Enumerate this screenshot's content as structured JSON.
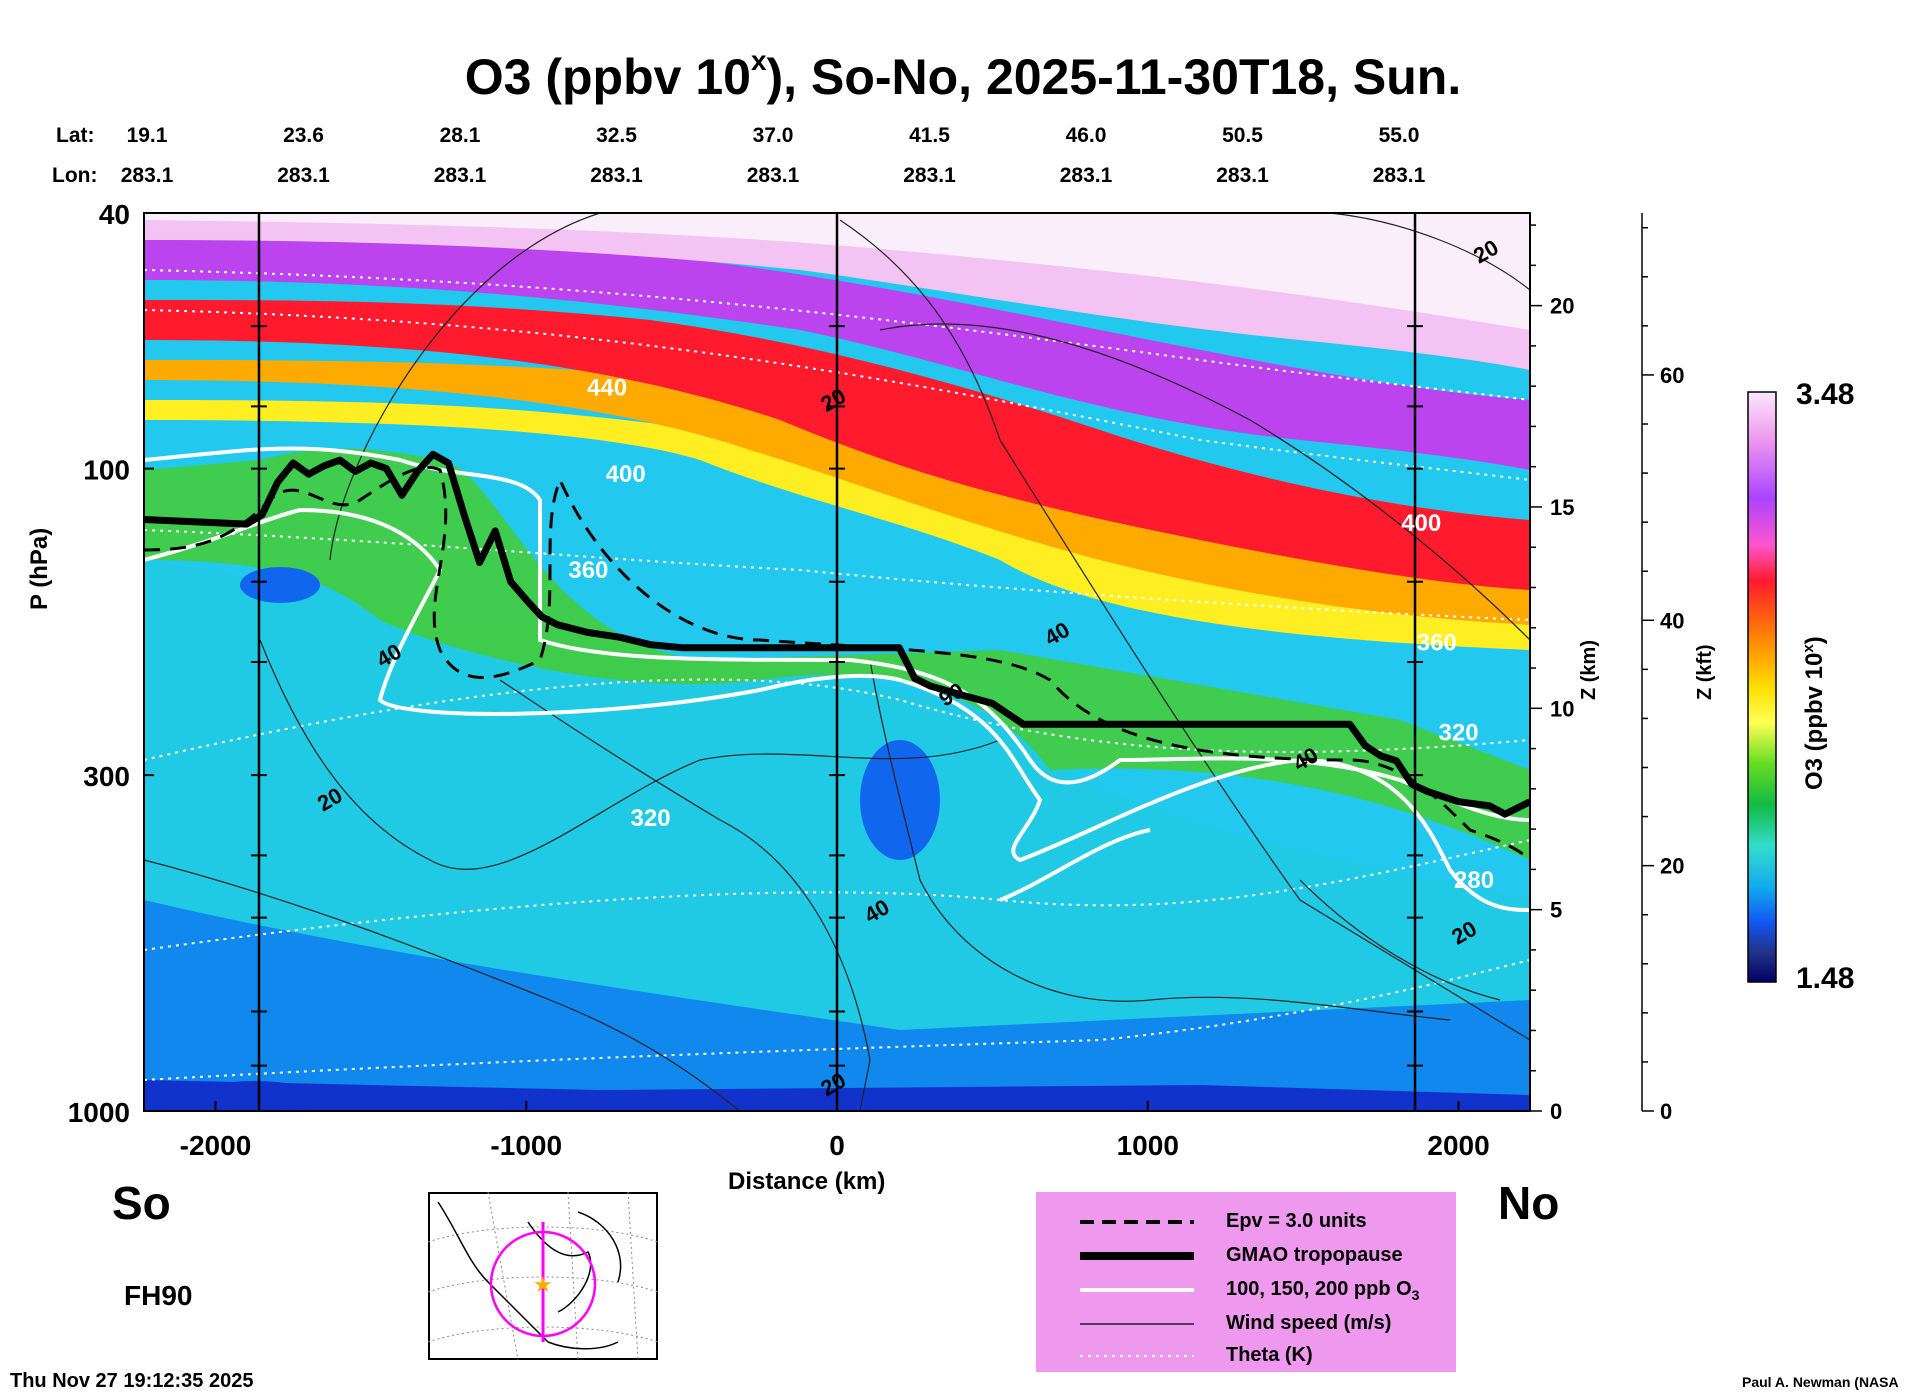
{
  "chart_data": {
    "type": "heatmap",
    "title_main": "O3 (ppbv 10",
    "title_sup": "x",
    "title_rest": "), So-No, 2025-11-30T18, Sun.",
    "xlabel": "Distance (km)",
    "ylabel": "P (hPa)",
    "z_km_label": "Z (km)",
    "z_kft_label": "Z (kft)",
    "colorbar_label_main": "O3 (ppbv 10",
    "colorbar_label_sup": "x",
    "colorbar_label_rest": ")",
    "colorbar_max": "3.48",
    "colorbar_min": "1.48",
    "xlim": [
      -2230,
      2230
    ],
    "ylim": [
      1000,
      40
    ],
    "x_ticks": [
      -2000,
      -1000,
      0,
      1000,
      2000
    ],
    "y_ticks": [
      40,
      100,
      300,
      1000
    ],
    "z_km_ticks": [
      0,
      5,
      10,
      15,
      20
    ],
    "z_kft_ticks": [
      0,
      20,
      40,
      60
    ],
    "lat_label": "Lat:",
    "lon_label": "Lon:",
    "lats": [
      "19.1",
      "23.6",
      "28.1",
      "32.5",
      "37.0",
      "41.5",
      "46.0",
      "50.5",
      "55.0"
    ],
    "lons": [
      "283.1",
      "283.1",
      "283.1",
      "283.1",
      "283.1",
      "283.1",
      "283.1",
      "283.1",
      "283.1"
    ],
    "vertical_markers_km": [
      -1860,
      0,
      1860
    ],
    "tropopause": {
      "x": [
        -2230,
        -1900,
        -1850,
        -1800,
        -1750,
        -1700,
        -1650,
        -1600,
        -1550,
        -1500,
        -1450,
        -1400,
        -1350,
        -1300,
        -1250,
        -1200,
        -1150,
        -1100,
        -1050,
        -1000,
        -950,
        -900,
        -800,
        -700,
        -600,
        -500,
        -400,
        -300,
        -200,
        -100,
        0,
        100,
        200,
        250,
        300,
        400,
        500,
        600,
        700,
        800,
        1000,
        1200,
        1400,
        1650,
        1700,
        1750,
        1800,
        1850,
        1900,
        2000,
        2100,
        2150,
        2230
      ],
      "p": [
        120,
        122,
        118,
        105,
        98,
        102,
        99,
        97,
        101,
        98,
        100,
        110,
        101,
        95,
        98,
        118,
        140,
        125,
        150,
        160,
        170,
        175,
        180,
        183,
        188,
        190,
        190,
        190,
        190,
        190,
        190,
        190,
        190,
        212,
        218,
        225,
        232,
        250,
        250,
        250,
        250,
        250,
        250,
        250,
        270,
        280,
        285,
        310,
        318,
        330,
        335,
        345,
        330
      ]
    },
    "theta_labels": [
      {
        "value": "440",
        "x": -740,
        "p": 77
      },
      {
        "value": "400",
        "x": -680,
        "p": 105
      },
      {
        "value": "360",
        "x": -800,
        "p": 148
      },
      {
        "value": "320",
        "x": -600,
        "p": 360
      },
      {
        "value": "400",
        "x": 1880,
        "p": 125
      },
      {
        "value": "360",
        "x": 1930,
        "p": 192
      },
      {
        "value": "320",
        "x": 2000,
        "p": 265
      },
      {
        "value": "280",
        "x": 2050,
        "p": 450
      }
    ],
    "wind_labels": [
      {
        "value": "20",
        "x": 2100,
        "p": 47
      },
      {
        "value": "20",
        "x": 0,
        "p": 80
      },
      {
        "value": "40",
        "x": 720,
        "p": 185
      },
      {
        "value": "90",
        "x": 380,
        "p": 230
      },
      {
        "value": "40",
        "x": -1430,
        "p": 200
      },
      {
        "value": "20",
        "x": -1620,
        "p": 335
      },
      {
        "value": "40",
        "x": 1520,
        "p": 290
      },
      {
        "value": "40",
        "x": 140,
        "p": 500
      },
      {
        "value": "20",
        "x": 2030,
        "p": 540
      },
      {
        "value": "20",
        "x": 0,
        "p": 930
      }
    ],
    "legend": [
      {
        "label": "Epv = 3.0 units",
        "style": "dashed"
      },
      {
        "label": "GMAO tropopause",
        "style": "thick"
      },
      {
        "label": "100, 150, 200 ppb O",
        "sub": "3",
        "style": "white"
      },
      {
        "label": "Wind speed (m/s)",
        "style": "thin"
      },
      {
        "label": "Theta (K)",
        "style": "dotted"
      }
    ]
  },
  "labels": {
    "south": "So",
    "north": "No",
    "forecast_hour": "FH90",
    "timestamp": "Thu Nov 27 19:12:35 2025",
    "credit": "Paul A. Newman (NASA"
  },
  "colors": {
    "legend_bg": "#ee99ee",
    "map_track": "#ff00ff",
    "map_marker": "#ffaa00"
  }
}
